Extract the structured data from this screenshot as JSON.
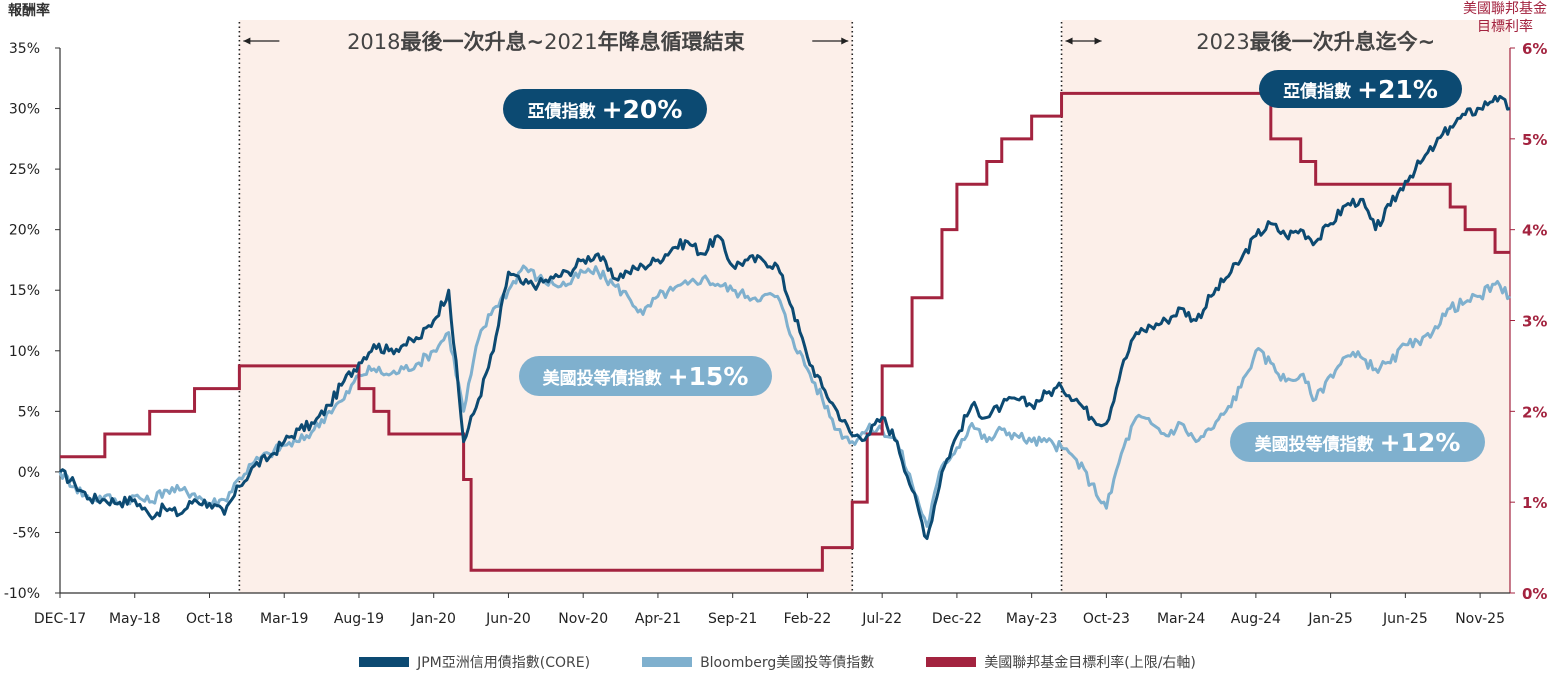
{
  "chart_data": {
    "type": "line",
    "title": "",
    "left_axis": {
      "label": "報酬率",
      "ticks": [
        "35%",
        "30%",
        "25%",
        "20%",
        "15%",
        "10%",
        "5%",
        "0%",
        "-5%",
        "-10%"
      ],
      "ylim": [
        -10,
        35
      ]
    },
    "right_axis": {
      "label_line1": "美國聯邦基金",
      "label_line2": "目標利率",
      "ticks": [
        "6%",
        "5%",
        "4%",
        "3%",
        "2%",
        "1%",
        "0%"
      ],
      "ylim": [
        0,
        6
      ],
      "color": "#a3233f"
    },
    "x_tick_labels": [
      "DEC-17",
      "May-18",
      "Oct-18",
      "Mar-19",
      "Aug-19",
      "Jan-20",
      "Jun-20",
      "Nov-20",
      "Apr-21",
      "Sep-21",
      "Feb-22",
      "Jul-22",
      "Dec-22",
      "May-23",
      "Oct-23",
      "Mar-24",
      "Aug-24",
      "Jan-25",
      "Jun-25",
      "Nov-25"
    ],
    "x_range": [
      "2017-12",
      "2026-01"
    ],
    "periods": [
      {
        "start": "2018-12",
        "end": "2022-05",
        "label_prefix": "2018",
        "label_mid": "最後一次升息~",
        "label_mid2": "2021",
        "label_suffix": "年降息循環結束",
        "shaded": true
      },
      {
        "start": "2023-07",
        "end": "2026-01",
        "label_prefix": "2023",
        "label_mid": "最後一次升息迄今~",
        "shaded": true
      }
    ],
    "series": [
      {
        "name": "JPM亞洲信用債指數(CORE)",
        "color": "#0c4a72",
        "axis": "left",
        "points": [
          [
            "2017-12",
            0.0
          ],
          [
            "2018-01",
            -1.0
          ],
          [
            "2018-02",
            -2.2
          ],
          [
            "2018-03",
            -2.3
          ],
          [
            "2018-04",
            -2.5
          ],
          [
            "2018-05",
            -2.3
          ],
          [
            "2018-06",
            -3.6
          ],
          [
            "2018-07",
            -3.0
          ],
          [
            "2018-08",
            -3.5
          ],
          [
            "2018-09",
            -2.3
          ],
          [
            "2018-10",
            -2.6
          ],
          [
            "2018-11",
            -3.5
          ],
          [
            "2018-12",
            -1.2
          ],
          [
            "2019-01",
            0.5
          ],
          [
            "2019-02",
            1.2
          ],
          [
            "2019-03",
            2.5
          ],
          [
            "2019-04",
            3.5
          ],
          [
            "2019-05",
            4.0
          ],
          [
            "2019-06",
            5.5
          ],
          [
            "2019-07",
            7.5
          ],
          [
            "2019-08",
            9.0
          ],
          [
            "2019-09",
            10.5
          ],
          [
            "2019-10",
            10.0
          ],
          [
            "2019-11",
            10.5
          ],
          [
            "2019-12",
            11.0
          ],
          [
            "2020-01",
            12.5
          ],
          [
            "2020-02",
            15.0
          ],
          [
            "2020-03",
            2.5
          ],
          [
            "2020-04",
            6.0
          ],
          [
            "2020-05",
            10.0
          ],
          [
            "2020-06",
            16.5
          ],
          [
            "2020-07",
            15.5
          ],
          [
            "2020-08",
            15.5
          ],
          [
            "2020-09",
            16.0
          ],
          [
            "2020-10",
            16.5
          ],
          [
            "2020-11",
            17.5
          ],
          [
            "2020-12",
            18.0
          ],
          [
            "2021-01",
            16.0
          ],
          [
            "2021-02",
            16.5
          ],
          [
            "2021-03",
            17.0
          ],
          [
            "2021-04",
            17.5
          ],
          [
            "2021-05",
            18.5
          ],
          [
            "2021-06",
            19.0
          ],
          [
            "2021-07",
            18.0
          ],
          [
            "2021-08",
            19.5
          ],
          [
            "2021-09",
            17.0
          ],
          [
            "2021-10",
            17.5
          ],
          [
            "2021-11",
            17.5
          ],
          [
            "2021-12",
            17.0
          ],
          [
            "2022-01",
            13.5
          ],
          [
            "2022-02",
            9.5
          ],
          [
            "2022-03",
            7.0
          ],
          [
            "2022-04",
            5.0
          ],
          [
            "2022-05",
            3.0
          ],
          [
            "2022-06",
            3.0
          ],
          [
            "2022-07",
            4.5
          ],
          [
            "2022-08",
            2.5
          ],
          [
            "2022-09",
            -1.5
          ],
          [
            "2022-10",
            -5.5
          ],
          [
            "2022-11",
            0.0
          ],
          [
            "2022-12",
            3.0
          ],
          [
            "2023-01",
            5.5
          ],
          [
            "2023-02",
            4.5
          ],
          [
            "2023-03",
            5.5
          ],
          [
            "2023-04",
            6.0
          ],
          [
            "2023-05",
            5.5
          ],
          [
            "2023-06",
            6.5
          ],
          [
            "2023-07",
            7.0
          ],
          [
            "2023-08",
            6.0
          ],
          [
            "2023-09",
            4.5
          ],
          [
            "2023-10",
            4.0
          ],
          [
            "2023-11",
            8.5
          ],
          [
            "2023-12",
            11.5
          ],
          [
            "2024-01",
            12.0
          ],
          [
            "2024-02",
            12.5
          ],
          [
            "2024-03",
            13.5
          ],
          [
            "2024-04",
            12.5
          ],
          [
            "2024-05",
            14.5
          ],
          [
            "2024-06",
            16.0
          ],
          [
            "2024-07",
            17.5
          ],
          [
            "2024-08",
            19.5
          ],
          [
            "2024-09",
            20.5
          ],
          [
            "2024-10",
            19.5
          ],
          [
            "2024-11",
            20.0
          ],
          [
            "2024-12",
            19.0
          ],
          [
            "2025-01",
            20.5
          ],
          [
            "2025-02",
            22.0
          ],
          [
            "2025-03",
            22.5
          ],
          [
            "2025-04",
            20.0
          ],
          [
            "2025-05",
            22.0
          ],
          [
            "2025-06",
            24.0
          ],
          [
            "2025-07",
            25.5
          ],
          [
            "2025-08",
            27.0
          ],
          [
            "2025-09",
            28.5
          ],
          [
            "2025-10",
            29.5
          ],
          [
            "2025-11",
            30.0
          ],
          [
            "2025-12",
            31.0
          ],
          [
            "2026-01",
            30.0
          ]
        ]
      },
      {
        "name": "Bloomberg美國投等債指數",
        "color": "#7fb0ce",
        "axis": "left",
        "points": [
          [
            "2017-12",
            0.0
          ],
          [
            "2018-01",
            -1.2
          ],
          [
            "2018-02",
            -2.3
          ],
          [
            "2018-03",
            -2.0
          ],
          [
            "2018-04",
            -2.6
          ],
          [
            "2018-05",
            -2.0
          ],
          [
            "2018-06",
            -2.5
          ],
          [
            "2018-07",
            -1.5
          ],
          [
            "2018-08",
            -1.5
          ],
          [
            "2018-09",
            -1.8
          ],
          [
            "2018-10",
            -2.6
          ],
          [
            "2018-11",
            -2.3
          ],
          [
            "2018-12",
            -0.5
          ],
          [
            "2019-01",
            0.8
          ],
          [
            "2019-02",
            1.5
          ],
          [
            "2019-03",
            2.2
          ],
          [
            "2019-04",
            2.5
          ],
          [
            "2019-05",
            3.5
          ],
          [
            "2019-06",
            5.0
          ],
          [
            "2019-07",
            6.0
          ],
          [
            "2019-08",
            8.0
          ],
          [
            "2019-09",
            8.5
          ],
          [
            "2019-10",
            8.0
          ],
          [
            "2019-11",
            8.5
          ],
          [
            "2019-12",
            9.0
          ],
          [
            "2020-01",
            10.0
          ],
          [
            "2020-02",
            11.5
          ],
          [
            "2020-03",
            5.0
          ],
          [
            "2020-04",
            11.0
          ],
          [
            "2020-05",
            13.5
          ],
          [
            "2020-06",
            15.0
          ],
          [
            "2020-07",
            17.0
          ],
          [
            "2020-08",
            16.0
          ],
          [
            "2020-09",
            15.5
          ],
          [
            "2020-10",
            15.5
          ],
          [
            "2020-11",
            16.5
          ],
          [
            "2020-12",
            16.5
          ],
          [
            "2021-01",
            15.5
          ],
          [
            "2021-02",
            14.5
          ],
          [
            "2021-03",
            13.0
          ],
          [
            "2021-04",
            14.5
          ],
          [
            "2021-05",
            15.0
          ],
          [
            "2021-06",
            15.5
          ],
          [
            "2021-07",
            16.0
          ],
          [
            "2021-08",
            15.5
          ],
          [
            "2021-09",
            15.0
          ],
          [
            "2021-10",
            14.5
          ],
          [
            "2021-11",
            14.5
          ],
          [
            "2021-12",
            14.5
          ],
          [
            "2022-01",
            11.0
          ],
          [
            "2022-02",
            8.5
          ],
          [
            "2022-03",
            6.0
          ],
          [
            "2022-04",
            3.5
          ],
          [
            "2022-05",
            2.5
          ],
          [
            "2022-06",
            3.5
          ],
          [
            "2022-07",
            3.5
          ],
          [
            "2022-08",
            2.5
          ],
          [
            "2022-09",
            -1.0
          ],
          [
            "2022-10",
            -4.5
          ],
          [
            "2022-11",
            0.5
          ],
          [
            "2022-12",
            2.0
          ],
          [
            "2023-01",
            4.0
          ],
          [
            "2023-02",
            2.5
          ],
          [
            "2023-03",
            3.5
          ],
          [
            "2023-04",
            3.0
          ],
          [
            "2023-05",
            2.5
          ],
          [
            "2023-06",
            2.5
          ],
          [
            "2023-07",
            2.0
          ],
          [
            "2023-08",
            1.0
          ],
          [
            "2023-09",
            -1.0
          ],
          [
            "2023-10",
            -3.0
          ],
          [
            "2023-11",
            1.5
          ],
          [
            "2023-12",
            4.5
          ],
          [
            "2024-01",
            4.0
          ],
          [
            "2024-02",
            3.0
          ],
          [
            "2024-03",
            4.0
          ],
          [
            "2024-04",
            2.5
          ],
          [
            "2024-05",
            3.5
          ],
          [
            "2024-06",
            5.0
          ],
          [
            "2024-07",
            7.0
          ],
          [
            "2024-08",
            10.0
          ],
          [
            "2024-09",
            9.0
          ],
          [
            "2024-10",
            7.5
          ],
          [
            "2024-11",
            8.0
          ],
          [
            "2024-12",
            6.0
          ],
          [
            "2025-01",
            8.0
          ],
          [
            "2025-02",
            9.5
          ],
          [
            "2025-03",
            9.5
          ],
          [
            "2025-04",
            8.5
          ],
          [
            "2025-05",
            9.0
          ],
          [
            "2025-06",
            10.5
          ],
          [
            "2025-07",
            10.5
          ],
          [
            "2025-08",
            12.0
          ],
          [
            "2025-09",
            13.5
          ],
          [
            "2025-10",
            14.0
          ],
          [
            "2025-11",
            14.5
          ],
          [
            "2025-12",
            15.5
          ],
          [
            "2026-01",
            14.5
          ]
        ]
      },
      {
        "name": "美國聯邦基金目標利率(上限/右軸)",
        "color": "#a3233f",
        "axis": "right",
        "step": true,
        "points": [
          [
            "2017-12",
            1.5
          ],
          [
            "2018-03",
            1.75
          ],
          [
            "2018-06",
            2.0
          ],
          [
            "2018-09",
            2.25
          ],
          [
            "2018-12",
            2.5
          ],
          [
            "2019-08",
            2.25
          ],
          [
            "2019-09",
            2.0
          ],
          [
            "2019-10",
            1.75
          ],
          [
            "2020-03",
            1.25
          ],
          [
            "2020-03-16",
            0.25
          ],
          [
            "2022-03",
            0.5
          ],
          [
            "2022-05",
            1.0
          ],
          [
            "2022-06",
            1.75
          ],
          [
            "2022-07",
            2.5
          ],
          [
            "2022-09",
            3.25
          ],
          [
            "2022-11",
            4.0
          ],
          [
            "2022-12",
            4.5
          ],
          [
            "2023-02",
            4.75
          ],
          [
            "2023-03",
            5.0
          ],
          [
            "2023-05",
            5.25
          ],
          [
            "2023-07",
            5.5
          ],
          [
            "2024-09",
            5.0
          ],
          [
            "2024-11",
            4.75
          ],
          [
            "2024-12",
            4.5
          ],
          [
            "2025-09",
            4.25
          ],
          [
            "2025-10",
            4.0
          ],
          [
            "2025-12",
            3.75
          ],
          [
            "2026-01",
            3.75
          ]
        ]
      }
    ],
    "callouts": [
      {
        "name": "亞債指數",
        "value": "+20%",
        "style": "dark"
      },
      {
        "name": "美國投等債指數",
        "value": "+15%",
        "style": "light"
      },
      {
        "name": "亞債指數",
        "value": "+21%",
        "style": "dark"
      },
      {
        "name": "美國投等債指數",
        "value": "+12%",
        "style": "light"
      }
    ],
    "legend": [
      {
        "label": "JPM亞洲信用債指數(CORE)",
        "color": "#0c4a72"
      },
      {
        "label": "Bloomberg美國投等債指數",
        "color": "#7fb0ce"
      },
      {
        "label": "美國聯邦基金目標利率(上限/右軸)",
        "color": "#a3233f"
      }
    ],
    "legend_placement": "bottom",
    "grid": false
  }
}
